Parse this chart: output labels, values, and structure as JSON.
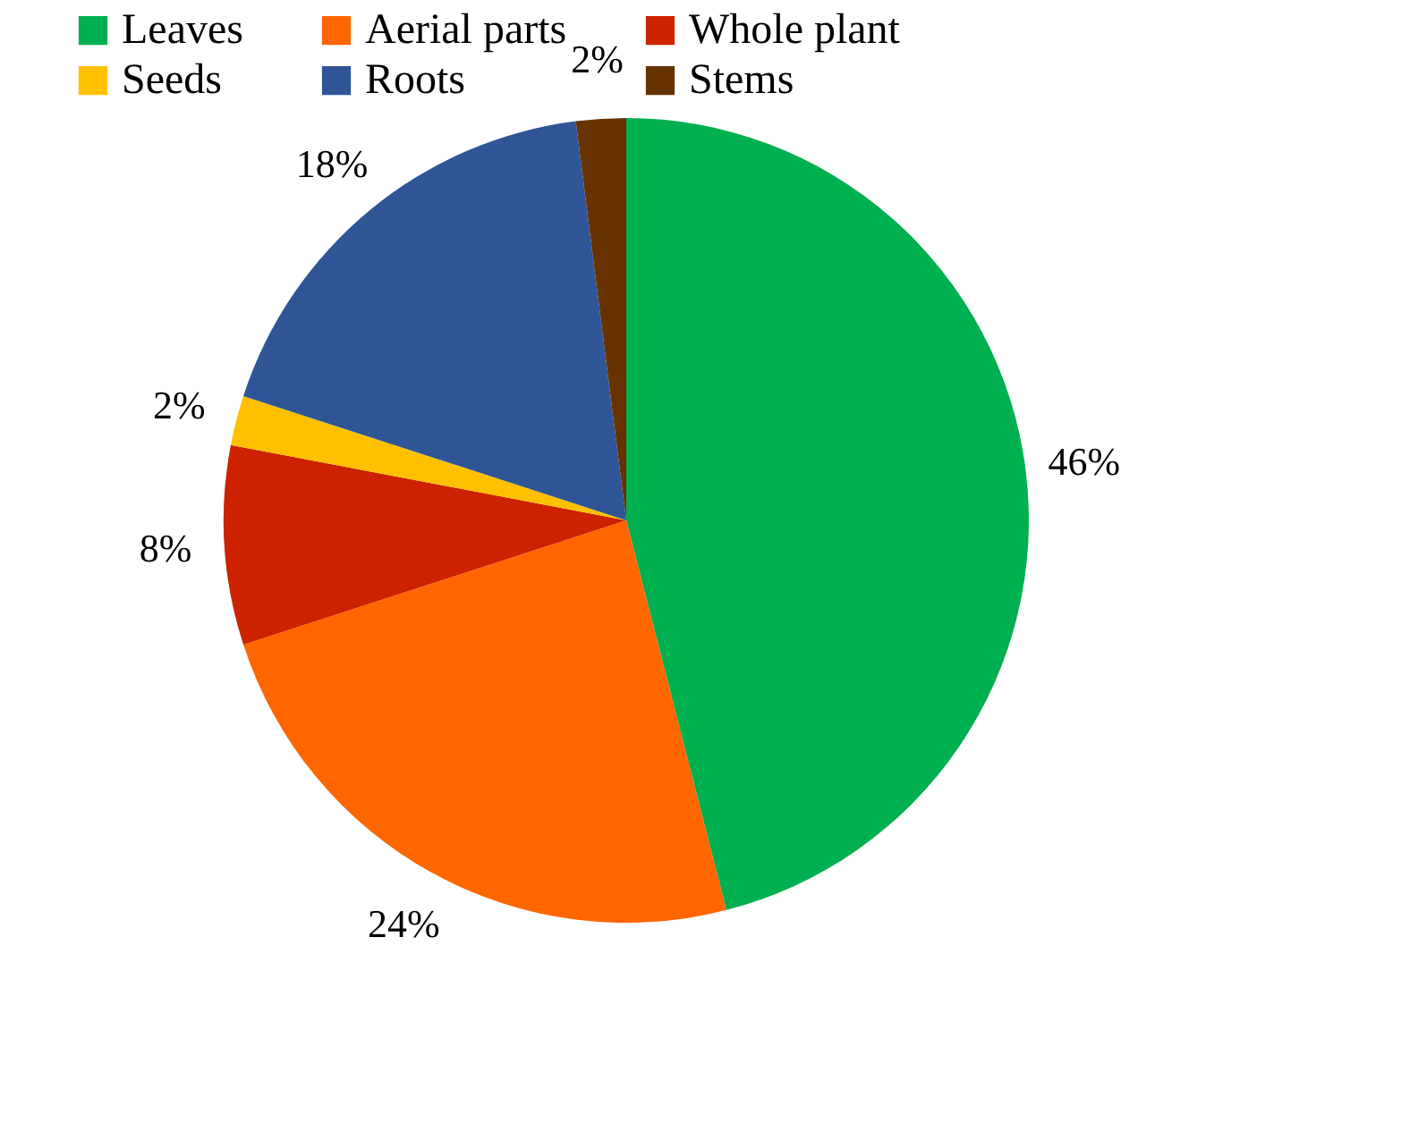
{
  "chart_data": {
    "type": "pie",
    "categories": [
      "Leaves",
      "Aerial parts",
      "Whole plant",
      "Seeds",
      "Roots",
      "Stems"
    ],
    "values": [
      46,
      24,
      8,
      2,
      18,
      2
    ],
    "colors": [
      "#00b050",
      "#ff6600",
      "#cc2200",
      "#ffc000",
      "#2f5597",
      "#663300"
    ],
    "value_labels": [
      "46%",
      "24%",
      "8%",
      "2%",
      "18%",
      "2%"
    ],
    "legend": "top"
  }
}
